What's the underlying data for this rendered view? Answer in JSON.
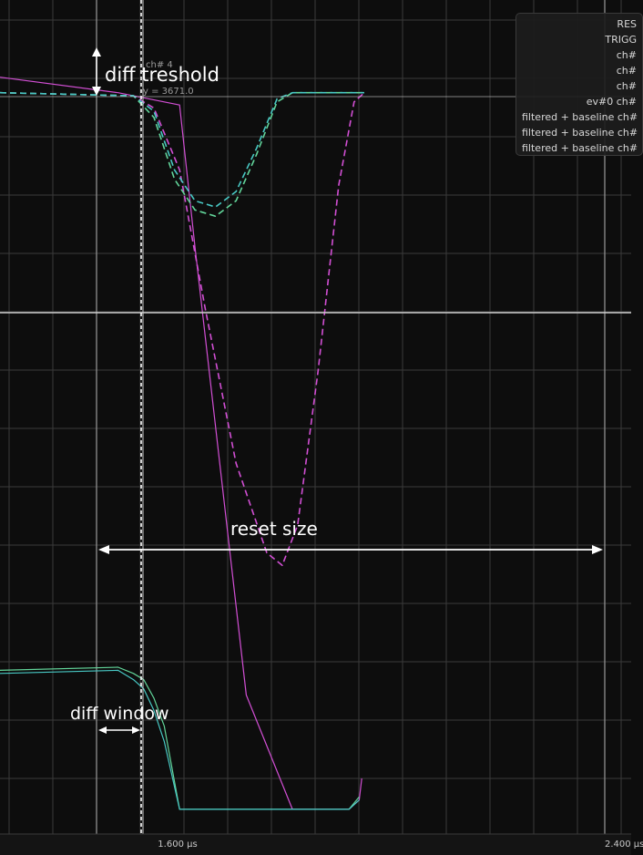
{
  "chart_data": {
    "type": "line",
    "xlabel": "",
    "ylabel": "",
    "x_tick_labels": [
      "1.600 µs",
      "2.400 µs"
    ],
    "grid": true,
    "legend_position": "top-right",
    "legend": [
      "RES",
      "TRIGG",
      "ch#",
      "ch#",
      "ch#",
      "ev#0 ch#",
      "filtered + baseline ch#",
      "filtered + baseline ch#",
      "filtered + baseline ch#"
    ],
    "colors": {
      "background": "#0d0d0d",
      "grid": "#3a3a3a",
      "magenta": "#d24fd4",
      "green": "#62d59a",
      "teal": "#48c8c4",
      "annotation": "#ffffff",
      "cursor": "#d8d8d8"
    },
    "cursor_readout": {
      "channel": "ch# 4",
      "value": "y = 3671.0"
    },
    "annotations": {
      "diff_treshold": "diff treshold",
      "reset_size": "reset size",
      "diff_window": "diff window"
    },
    "series": [
      {
        "style": "solid",
        "color": "magenta",
        "x_us": [
          1.22,
          1.45,
          1.57,
          1.6,
          1.7,
          1.79,
          1.9,
          1.92,
          1.925
        ],
        "y": [
          5,
          0,
          -4,
          -50,
          -195,
          -232,
          -232,
          -229,
          -222
        ]
      },
      {
        "style": "solid",
        "color": "green",
        "x_us": [
          1.22,
          1.45,
          1.48,
          1.5,
          1.52,
          1.54,
          1.57,
          1.6,
          1.9,
          1.92
        ],
        "y": [
          -187,
          -186,
          -188,
          -190,
          -196,
          -205,
          -232,
          -232,
          -232,
          -228
        ]
      },
      {
        "style": "solid",
        "color": "teal",
        "x_us": [
          1.22,
          1.45,
          1.48,
          1.5,
          1.52,
          1.54,
          1.57,
          1.6,
          1.9,
          1.92
        ],
        "y": [
          -188,
          -187,
          -190,
          -193,
          -200,
          -210,
          -232,
          -232,
          -232,
          -229
        ]
      },
      {
        "style": "dashed",
        "color": "magenta",
        "x_us": [
          1.22,
          1.48,
          1.52,
          1.57,
          1.62,
          1.68,
          1.74,
          1.77,
          1.8,
          1.84,
          1.88,
          1.91,
          1.93
        ],
        "y": [
          0,
          -1,
          -5,
          -25,
          -70,
          -120,
          -149,
          -153,
          -140,
          -90,
          -30,
          -3,
          0
        ]
      },
      {
        "style": "dashed",
        "color": "green",
        "x_us": [
          1.22,
          1.48,
          1.52,
          1.56,
          1.6,
          1.64,
          1.68,
          1.72,
          1.76,
          1.79,
          1.93
        ],
        "y": [
          0,
          -1,
          -8,
          -28,
          -38,
          -40,
          -35,
          -20,
          -3,
          0,
          0
        ]
      },
      {
        "style": "dashed",
        "color": "teal",
        "x_us": [
          1.22,
          1.48,
          1.52,
          1.56,
          1.6,
          1.64,
          1.68,
          1.72,
          1.76,
          1.79,
          1.93
        ],
        "y": [
          0,
          -1,
          -6,
          -25,
          -35,
          -37,
          -32,
          -18,
          -2,
          0,
          0
        ]
      }
    ],
    "x_range_us": [
      1.22,
      2.45
    ],
    "y_range": [
      -240,
      30
    ]
  }
}
